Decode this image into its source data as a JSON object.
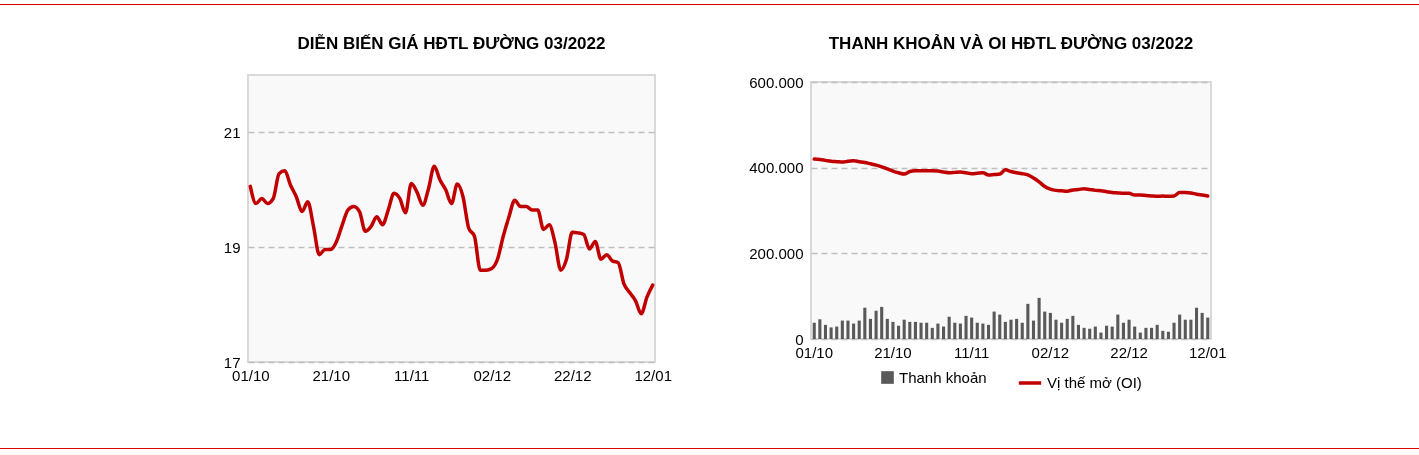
{
  "chart_data": [
    {
      "type": "line",
      "title": "DIỄN BIẾN GIÁ HĐTL ĐƯỜNG 03/2022",
      "categories": [
        "01/10",
        null,
        null,
        null,
        null,
        null,
        null,
        null,
        null,
        null,
        null,
        null,
        null,
        null,
        "21/10",
        null,
        null,
        null,
        null,
        null,
        null,
        null,
        null,
        null,
        null,
        null,
        null,
        null,
        "11/11",
        null,
        null,
        null,
        null,
        null,
        null,
        null,
        null,
        null,
        null,
        null,
        null,
        null,
        "02/12",
        null,
        null,
        null,
        null,
        null,
        null,
        null,
        null,
        null,
        null,
        null,
        null,
        null,
        "22/12",
        null,
        null,
        null,
        null,
        null,
        null,
        null,
        null,
        null,
        null,
        null,
        null,
        null,
        "12/01"
      ],
      "series": [
        {
          "color": "#c00000",
          "values": [
            20.06,
            19.76,
            19.85,
            19.76,
            19.85,
            20.28,
            20.33,
            20.08,
            19.88,
            19.62,
            19.79,
            19.36,
            18.87,
            18.96,
            18.96,
            19.1,
            19.39,
            19.65,
            19.71,
            19.62,
            19.28,
            19.36,
            19.53,
            19.39,
            19.65,
            19.94,
            19.85,
            19.6,
            20.11,
            19.96,
            19.73,
            20.02,
            20.41,
            20.17,
            20.0,
            19.76,
            20.1,
            19.88,
            19.33,
            19.19,
            18.6,
            18.6,
            18.63,
            18.79,
            19.19,
            19.53,
            19.82,
            19.71,
            19.71,
            19.65,
            19.65,
            19.31,
            19.39,
            19.08,
            18.6,
            18.79,
            19.26,
            19.25,
            19.22,
            18.97,
            19.1,
            18.79,
            18.87,
            18.76,
            18.73,
            18.36,
            18.21,
            18.07,
            17.84,
            18.13,
            18.34
          ]
        }
      ],
      "ylim": [
        17,
        22
      ],
      "yticks": [
        17,
        19,
        21
      ],
      "grid": "y",
      "legend": false
    },
    {
      "type": "bar",
      "title": "THANH KHOẢN VÀ OI HĐTL ĐƯỜNG 03/2022",
      "categories": [
        "01/10",
        null,
        null,
        null,
        null,
        null,
        null,
        null,
        null,
        null,
        null,
        null,
        null,
        null,
        "21/10",
        null,
        null,
        null,
        null,
        null,
        null,
        null,
        null,
        null,
        null,
        null,
        null,
        null,
        "11/11",
        null,
        null,
        null,
        null,
        null,
        null,
        null,
        null,
        null,
        null,
        null,
        null,
        null,
        "02/12",
        null,
        null,
        null,
        null,
        null,
        null,
        null,
        null,
        null,
        null,
        null,
        null,
        null,
        "22/12",
        null,
        null,
        null,
        null,
        null,
        null,
        null,
        null,
        null,
        null,
        null,
        null,
        null,
        "12/01"
      ],
      "series": [
        {
          "name": "Thanh khoản",
          "type": "bar",
          "color": "#595959",
          "values": [
            38000,
            46000,
            33000,
            27000,
            29000,
            43000,
            43000,
            36000,
            43000,
            73000,
            47000,
            66000,
            75000,
            47000,
            40000,
            31000,
            45000,
            40000,
            40000,
            38000,
            38000,
            26000,
            36000,
            29000,
            52000,
            38000,
            36000,
            54000,
            50000,
            38000,
            36000,
            33000,
            64000,
            57000,
            40000,
            45000,
            47000,
            38000,
            82000,
            43000,
            96000,
            64000,
            61000,
            45000,
            38000,
            47000,
            54000,
            33000,
            26000,
            24000,
            29000,
            15000,
            31000,
            29000,
            57000,
            38000,
            45000,
            29000,
            15000,
            26000,
            26000,
            33000,
            19000,
            17000,
            38000,
            57000,
            45000,
            45000,
            73000,
            61000,
            50000
          ]
        },
        {
          "name": "Vị thế mở (OI)",
          "type": "line",
          "color": "#c00000",
          "values": [
            420000,
            419000,
            417000,
            415000,
            414000,
            413000,
            415000,
            416000,
            414000,
            412000,
            409000,
            406000,
            402000,
            397000,
            392000,
            388000,
            385000,
            391000,
            393000,
            393000,
            393000,
            393000,
            392000,
            390000,
            388000,
            389000,
            390000,
            388000,
            386000,
            387000,
            388000,
            383000,
            384000,
            385000,
            395000,
            391000,
            388000,
            386000,
            383000,
            376000,
            367000,
            356000,
            350000,
            347000,
            346000,
            345000,
            348000,
            349000,
            351000,
            349000,
            347000,
            346000,
            344000,
            342000,
            341000,
            340000,
            340000,
            336000,
            336000,
            335000,
            334000,
            333000,
            334000,
            333000,
            334000,
            342000,
            342000,
            341000,
            338000,
            336000,
            334000
          ]
        }
      ],
      "ylim": [
        0,
        600000
      ],
      "yticks": [
        {
          "value": 0,
          "label": "0"
        },
        {
          "value": 200000,
          "label": "200.000"
        },
        {
          "value": 400000,
          "label": "400.000"
        },
        {
          "value": 600000,
          "label": "600.000"
        }
      ],
      "grid": "y",
      "legend": "bottom"
    }
  ]
}
